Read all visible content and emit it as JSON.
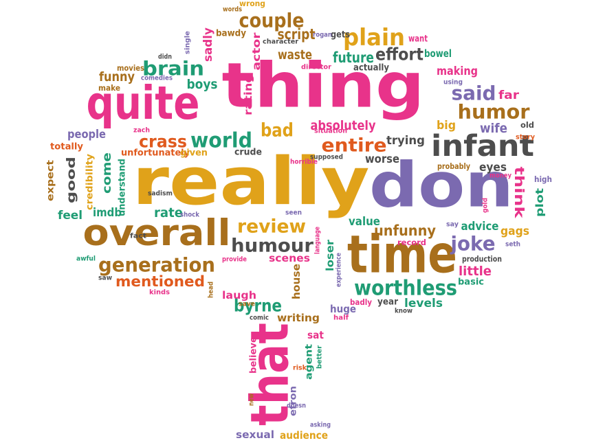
{
  "palette": {
    "pink": "#e8338a",
    "gold": "#e0a21a",
    "purple": "#7b6ab0",
    "green": "#1f9c74",
    "brown": "#a86f1c",
    "grey": "#4d4d4d",
    "orange": "#e05a1e",
    "lime": "#8ab832"
  },
  "words": [
    {
      "text": "really",
      "color": "gold"
    },
    {
      "text": "thing",
      "color": "pink"
    },
    {
      "text": "don",
      "color": "purple"
    },
    {
      "text": "quite",
      "color": "pink"
    },
    {
      "text": "time",
      "color": "brown"
    },
    {
      "text": "that",
      "color": "pink"
    },
    {
      "text": "overall",
      "color": "brown"
    },
    {
      "text": "infant",
      "color": "grey"
    },
    {
      "text": "generation",
      "color": "brown"
    },
    {
      "text": "worthless",
      "color": "green"
    },
    {
      "text": "humour",
      "color": "grey"
    },
    {
      "text": "plain",
      "color": "gold"
    },
    {
      "text": "couple",
      "color": "brown"
    },
    {
      "text": "brain",
      "color": "green"
    },
    {
      "text": "review",
      "color": "gold"
    },
    {
      "text": "world",
      "color": "green"
    },
    {
      "text": "humor",
      "color": "brown"
    },
    {
      "text": "entire",
      "color": "orange"
    },
    {
      "text": "said",
      "color": "purple"
    },
    {
      "text": "crass",
      "color": "orange"
    },
    {
      "text": "bad",
      "color": "gold"
    },
    {
      "text": "joke",
      "color": "purple"
    },
    {
      "text": "effort",
      "color": "grey"
    },
    {
      "text": "mentioned",
      "color": "orange"
    },
    {
      "text": "good",
      "color": "grey"
    },
    {
      "text": "come",
      "color": "green"
    },
    {
      "text": "think",
      "color": "pink"
    },
    {
      "text": "unfunny",
      "color": "brown"
    },
    {
      "text": "absolutely",
      "color": "pink"
    },
    {
      "text": "future",
      "color": "green"
    },
    {
      "text": "byrne",
      "color": "green"
    },
    {
      "text": "actor",
      "color": "pink"
    },
    {
      "text": "sadly",
      "color": "pink"
    },
    {
      "text": "script",
      "color": "brown"
    },
    {
      "text": "waste",
      "color": "brown"
    },
    {
      "text": "funny",
      "color": "brown"
    },
    {
      "text": "boys",
      "color": "green"
    },
    {
      "text": "rating",
      "color": "pink"
    },
    {
      "text": "wife",
      "color": "purple"
    },
    {
      "text": "trying",
      "color": "grey"
    },
    {
      "text": "worse",
      "color": "grey"
    },
    {
      "text": "eyes",
      "color": "grey"
    },
    {
      "text": "plot",
      "color": "green"
    },
    {
      "text": "advice",
      "color": "green"
    },
    {
      "text": "gags",
      "color": "gold"
    },
    {
      "text": "value",
      "color": "green"
    },
    {
      "text": "little",
      "color": "pink"
    },
    {
      "text": "scenes",
      "color": "pink"
    },
    {
      "text": "laugh",
      "color": "pink"
    },
    {
      "text": "writing",
      "color": "brown"
    },
    {
      "text": "levels",
      "color": "green"
    },
    {
      "text": "loser",
      "color": "green"
    },
    {
      "text": "house",
      "color": "brown"
    },
    {
      "text": "rate",
      "color": "green"
    },
    {
      "text": "feel",
      "color": "green"
    },
    {
      "text": "imdb",
      "color": "green"
    },
    {
      "text": "people",
      "color": "purple"
    },
    {
      "text": "making",
      "color": "pink"
    },
    {
      "text": "far",
      "color": "pink"
    },
    {
      "text": "big",
      "color": "gold"
    },
    {
      "text": "bowel",
      "color": "green"
    },
    {
      "text": "want",
      "color": "pink"
    },
    {
      "text": "actually",
      "color": "grey"
    },
    {
      "text": "credibility",
      "color": "gold"
    },
    {
      "text": "understand",
      "color": "green"
    },
    {
      "text": "expect",
      "color": "brown"
    },
    {
      "text": "totally",
      "color": "orange"
    },
    {
      "text": "unfortunately",
      "color": "orange"
    },
    {
      "text": "given",
      "color": "gold"
    },
    {
      "text": "crude",
      "color": "grey"
    },
    {
      "text": "believe",
      "color": "pink"
    },
    {
      "text": "agent",
      "color": "green"
    },
    {
      "text": "efron",
      "color": "purple"
    },
    {
      "text": "sexual",
      "color": "purple"
    },
    {
      "text": "audience",
      "color": "gold"
    },
    {
      "text": "sat",
      "color": "pink"
    },
    {
      "text": "huge",
      "color": "purple"
    },
    {
      "text": "badly",
      "color": "pink"
    },
    {
      "text": "year",
      "color": "grey"
    },
    {
      "text": "basic",
      "color": "green"
    },
    {
      "text": "record",
      "color": "pink"
    },
    {
      "text": "production",
      "color": "grey"
    },
    {
      "text": "bawdy",
      "color": "brown"
    },
    {
      "text": "gets",
      "color": "grey"
    },
    {
      "text": "movies",
      "color": "brown"
    },
    {
      "text": "make",
      "color": "brown"
    },
    {
      "text": "comedies",
      "color": "purple"
    },
    {
      "text": "didn",
      "color": "grey"
    },
    {
      "text": "single",
      "color": "purple"
    },
    {
      "text": "words",
      "color": "brown"
    },
    {
      "text": "wrong",
      "color": "gold"
    },
    {
      "text": "character",
      "color": "grey"
    },
    {
      "text": "rogan",
      "color": "purple"
    },
    {
      "text": "director",
      "color": "pink"
    },
    {
      "text": "using",
      "color": "purple"
    },
    {
      "text": "story",
      "color": "orange"
    },
    {
      "text": "old",
      "color": "grey"
    },
    {
      "text": "zach",
      "color": "pink"
    },
    {
      "text": "situation",
      "color": "pink"
    },
    {
      "text": "horrible",
      "color": "pink"
    },
    {
      "text": "supposed",
      "color": "grey"
    },
    {
      "text": "probably",
      "color": "brown"
    },
    {
      "text": "money",
      "color": "pink"
    },
    {
      "text": "high",
      "color": "purple"
    },
    {
      "text": "gold",
      "color": "pink"
    },
    {
      "text": "say",
      "color": "purple"
    },
    {
      "text": "seth",
      "color": "purple"
    },
    {
      "text": "sadism",
      "color": "grey"
    },
    {
      "text": "fact",
      "color": "grey"
    },
    {
      "text": "shock",
      "color": "purple"
    },
    {
      "text": "seen",
      "color": "purple"
    },
    {
      "text": "language",
      "color": "pink"
    },
    {
      "text": "awful",
      "color": "green"
    },
    {
      "text": "saw",
      "color": "grey"
    },
    {
      "text": "provide",
      "color": "pink"
    },
    {
      "text": "kinds",
      "color": "pink"
    },
    {
      "text": "head",
      "color": "brown"
    },
    {
      "text": "experience",
      "color": "purple"
    },
    {
      "text": "save",
      "color": "brown"
    },
    {
      "text": "comic",
      "color": "grey"
    },
    {
      "text": "half",
      "color": "pink"
    },
    {
      "text": "know",
      "color": "grey"
    },
    {
      "text": "better",
      "color": "green"
    },
    {
      "text": "risk",
      "color": "orange"
    },
    {
      "text": "new",
      "color": "brown"
    },
    {
      "text": "doesn",
      "color": "purple"
    },
    {
      "text": "asking",
      "color": "purple"
    }
  ]
}
